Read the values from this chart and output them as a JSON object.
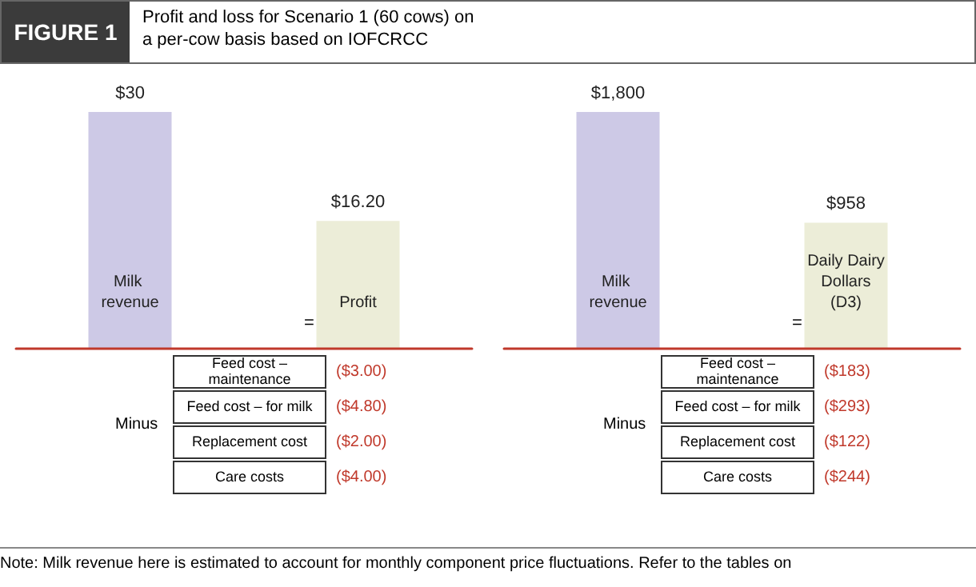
{
  "chart_data": [
    {
      "type": "bar",
      "title": "FIGURE 1",
      "subtitle": "Profit and loss for Scenario 1 (60 cows) on a per-cow basis based on IOFCRCC",
      "categories": [
        "Milk revenue",
        "Profit"
      ],
      "values": [
        30,
        16.2
      ],
      "value_labels": [
        "$30",
        "$16.20"
      ],
      "colors": [
        "#cdc9e6",
        "#ecedd8"
      ],
      "annotations": [
        "Minus",
        "=",
        "Feed cost – maintenance",
        "($3.00)",
        "Feed cost – for milk",
        "($4.80)",
        "Replacement cost",
        "($2.00)",
        "Care costs",
        "($4.00)"
      ]
    },
    {
      "type": "bar",
      "categories": [
        "Milk revenue",
        "Daily Dairy Dollars (D3)"
      ],
      "values": [
        1800,
        958
      ],
      "value_labels": [
        "$1,800",
        "$958"
      ],
      "colors": [
        "#cdc9e6",
        "#ecedd8"
      ],
      "annotations": [
        "Minus",
        "=",
        "Feed cost – maintenance",
        "($183)",
        "Feed cost – for milk",
        "($293)",
        "Replacement cost",
        "($122)",
        "Care costs",
        "($244)"
      ]
    },
    {
      "type": "other",
      "annotations": [
        "Note: Milk revenue here is estimated to account for monthly component price fluctuations. Refer to the tables on"
      ]
    }
  ]
}
